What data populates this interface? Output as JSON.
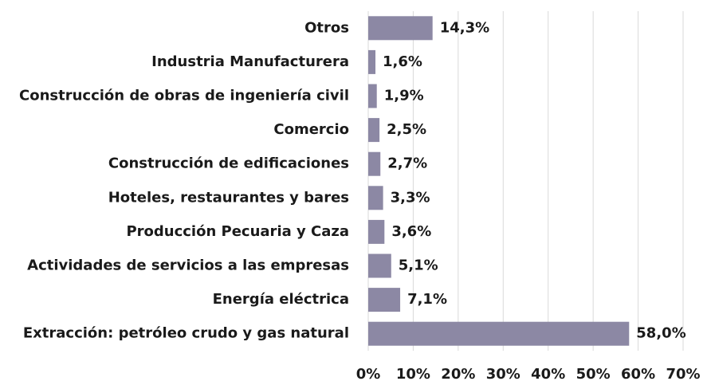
{
  "chart_data": {
    "type": "barh",
    "categories": [
      "Otros",
      "Industria Manufacturera",
      "Construcción de obras de ingeniería civil",
      "Comercio",
      "Construcción de edificaciones",
      "Hoteles, restaurantes y bares",
      "Producción Pecuaria y Caza",
      "Actividades de servicios a las empresas",
      "Energía eléctrica",
      "Extracción: petróleo crudo y gas natural"
    ],
    "values": [
      14.3,
      1.6,
      1.9,
      2.5,
      2.7,
      3.3,
      3.6,
      5.1,
      7.1,
      58.0
    ],
    "value_labels": [
      "14,3%",
      "1,6%",
      "1,9%",
      "2,5%",
      "2,7%",
      "3,3%",
      "3,6%",
      "5,1%",
      "7,1%",
      "58,0%"
    ],
    "color": "#8c88a4",
    "xlim": [
      0,
      70
    ],
    "xticks": [
      {
        "value": 0,
        "label": "0%"
      },
      {
        "value": 10,
        "label": "10%"
      },
      {
        "value": 20,
        "label": "20%"
      },
      {
        "value": 30,
        "label": "30%"
      },
      {
        "value": 40,
        "label": "40%"
      },
      {
        "value": 50,
        "label": "50%"
      },
      {
        "value": 60,
        "label": "60%"
      },
      {
        "value": 70,
        "label": "70%"
      }
    ],
    "grid": true
  }
}
